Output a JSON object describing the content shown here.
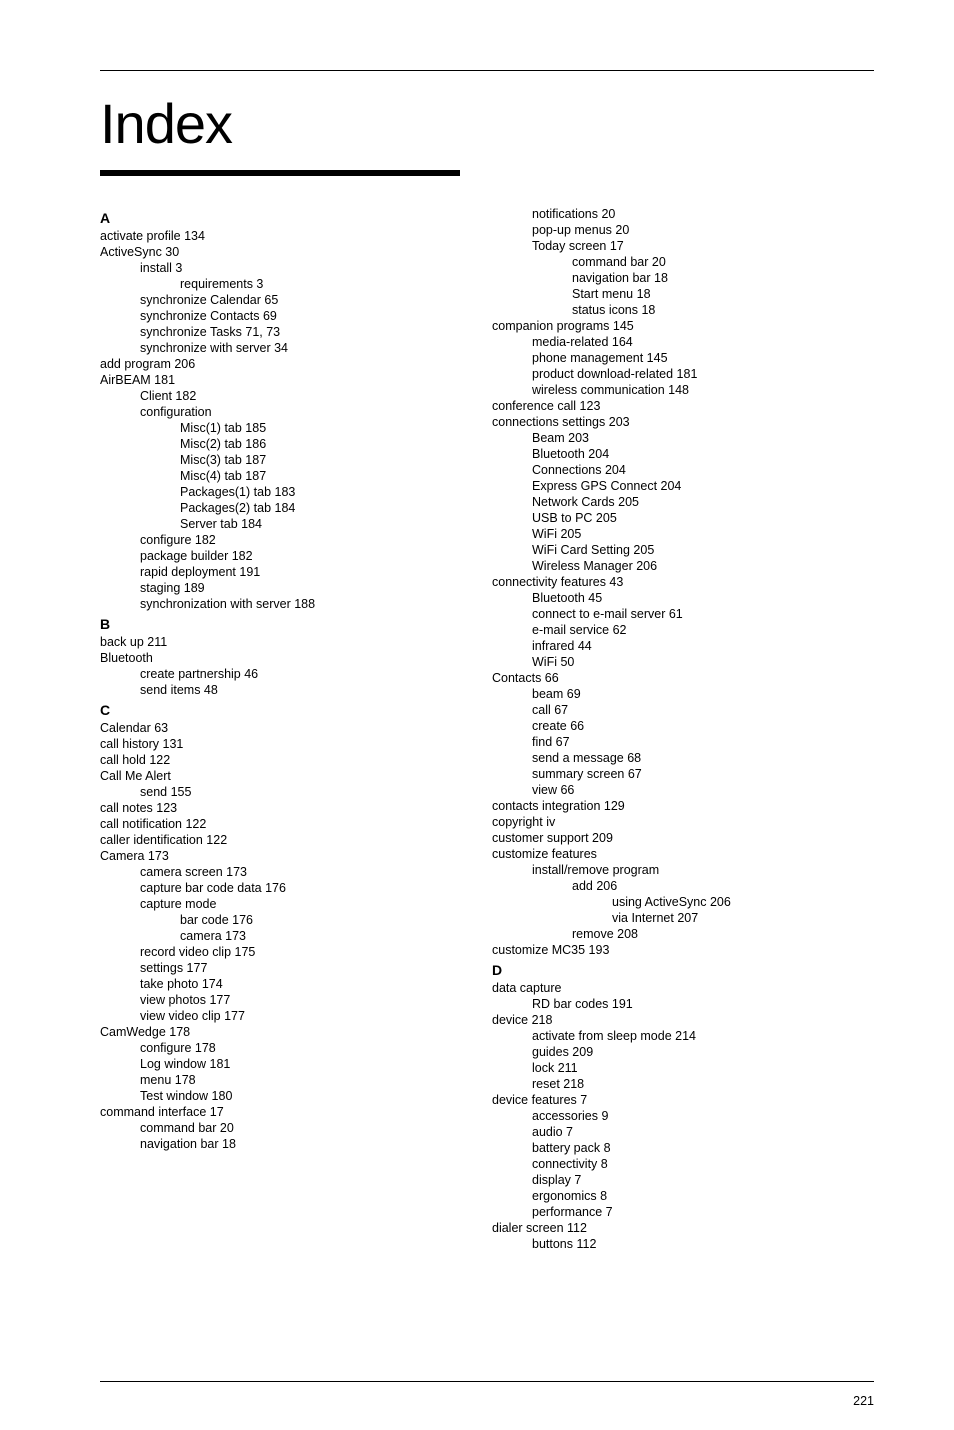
{
  "title": "Index",
  "page_number": "221",
  "left": [
    {
      "t": "letter",
      "text": "A"
    },
    {
      "t": "l0",
      "text": "activate profile  134"
    },
    {
      "t": "l0",
      "text": "ActiveSync  30"
    },
    {
      "t": "l1",
      "text": "install  3"
    },
    {
      "t": "l2",
      "text": "requirements  3"
    },
    {
      "t": "l1",
      "text": "synchronize Calendar  65"
    },
    {
      "t": "l1",
      "text": "synchronize Contacts  69"
    },
    {
      "t": "l1",
      "text": "synchronize Tasks  71, 73"
    },
    {
      "t": "l1",
      "text": "synchronize with server  34"
    },
    {
      "t": "l0",
      "text": "add program  206"
    },
    {
      "t": "l0",
      "text": "AirBEAM  181"
    },
    {
      "t": "l1",
      "text": "Client  182"
    },
    {
      "t": "l1",
      "text": "configuration"
    },
    {
      "t": "l2",
      "text": "Misc(1) tab  185"
    },
    {
      "t": "l2",
      "text": "Misc(2) tab  186"
    },
    {
      "t": "l2",
      "text": "Misc(3) tab  187"
    },
    {
      "t": "l2",
      "text": "Misc(4) tab  187"
    },
    {
      "t": "l2",
      "text": "Packages(1) tab  183"
    },
    {
      "t": "l2",
      "text": "Packages(2) tab  184"
    },
    {
      "t": "l2",
      "text": "Server tab  184"
    },
    {
      "t": "l1",
      "text": "configure  182"
    },
    {
      "t": "l1",
      "text": "package builder  182"
    },
    {
      "t": "l1",
      "text": "rapid deployment  191"
    },
    {
      "t": "l1",
      "text": "staging  189"
    },
    {
      "t": "l1",
      "text": "synchronization with server  188"
    },
    {
      "t": "letter",
      "text": "B"
    },
    {
      "t": "l0",
      "text": "back up  211"
    },
    {
      "t": "l0",
      "text": "Bluetooth"
    },
    {
      "t": "l1",
      "text": "create partnership  46"
    },
    {
      "t": "l1",
      "text": "send items  48"
    },
    {
      "t": "letter",
      "text": "C"
    },
    {
      "t": "l0",
      "text": "Calendar  63"
    },
    {
      "t": "l0",
      "text": "call history  131"
    },
    {
      "t": "l0",
      "text": "call hold  122"
    },
    {
      "t": "l0",
      "text": "Call Me Alert"
    },
    {
      "t": "l1",
      "text": "send  155"
    },
    {
      "t": "l0",
      "text": "call notes  123"
    },
    {
      "t": "l0",
      "text": "call notification  122"
    },
    {
      "t": "l0",
      "text": "caller identification  122"
    },
    {
      "t": "l0",
      "text": "Camera  173"
    },
    {
      "t": "l1",
      "text": "camera screen  173"
    },
    {
      "t": "l1",
      "text": "capture bar code data  176"
    },
    {
      "t": "l1",
      "text": "capture mode"
    },
    {
      "t": "l2",
      "text": "bar code  176"
    },
    {
      "t": "l2",
      "text": "camera  173"
    },
    {
      "t": "l1",
      "text": "record video clip  175"
    },
    {
      "t": "l1",
      "text": "settings  177"
    },
    {
      "t": "l1",
      "text": "take photo  174"
    },
    {
      "t": "l1",
      "text": "view photos  177"
    },
    {
      "t": "l1",
      "text": "view video clip  177"
    },
    {
      "t": "l0",
      "text": "CamWedge  178"
    },
    {
      "t": "l1",
      "text": "configure  178"
    },
    {
      "t": "l1",
      "text": "Log window  181"
    },
    {
      "t": "l1",
      "text": "menu  178"
    },
    {
      "t": "l1",
      "text": "Test window  180"
    },
    {
      "t": "l0",
      "text": "command interface  17"
    },
    {
      "t": "l1",
      "text": "command bar  20"
    },
    {
      "t": "l1",
      "text": "navigation bar  18"
    }
  ],
  "right": [
    {
      "t": "l1",
      "text": "notifications  20"
    },
    {
      "t": "l1",
      "text": "pop-up menus  20"
    },
    {
      "t": "l1",
      "text": "Today screen  17"
    },
    {
      "t": "l2",
      "text": "command bar  20"
    },
    {
      "t": "l2",
      "text": "navigation bar  18"
    },
    {
      "t": "l2",
      "text": "Start menu  18"
    },
    {
      "t": "l2",
      "text": "status icons  18"
    },
    {
      "t": "l0",
      "text": "companion programs  145"
    },
    {
      "t": "l1",
      "text": "media-related  164"
    },
    {
      "t": "l1",
      "text": "phone management  145"
    },
    {
      "t": "l1",
      "text": "product download-related  181"
    },
    {
      "t": "l1",
      "text": "wireless communication  148"
    },
    {
      "t": "l0",
      "text": "conference call  123"
    },
    {
      "t": "l0",
      "text": "connections settings  203"
    },
    {
      "t": "l1",
      "text": "Beam  203"
    },
    {
      "t": "l1",
      "text": "Bluetooth  204"
    },
    {
      "t": "l1",
      "text": "Connections  204"
    },
    {
      "t": "l1",
      "text": "Express GPS Connect  204"
    },
    {
      "t": "l1",
      "text": "Network Cards  205"
    },
    {
      "t": "l1",
      "text": "USB to PC  205"
    },
    {
      "t": "l1",
      "text": "WiFi  205"
    },
    {
      "t": "l1",
      "text": "WiFi Card Setting  205"
    },
    {
      "t": "l1",
      "text": "Wireless Manager  206"
    },
    {
      "t": "l0",
      "text": "connectivity features  43"
    },
    {
      "t": "l1",
      "text": "Bluetooth  45"
    },
    {
      "t": "l1",
      "text": "connect to e-mail server  61"
    },
    {
      "t": "l1",
      "text": "e-mail service  62"
    },
    {
      "t": "l1",
      "text": "infrared  44"
    },
    {
      "t": "l1",
      "text": "WiFi  50"
    },
    {
      "t": "l0",
      "text": "Contacts  66"
    },
    {
      "t": "l1",
      "text": "beam  69"
    },
    {
      "t": "l1",
      "text": "call  67"
    },
    {
      "t": "l1",
      "text": "create  66"
    },
    {
      "t": "l1",
      "text": "find  67"
    },
    {
      "t": "l1",
      "text": "send a message  68"
    },
    {
      "t": "l1",
      "text": "summary screen  67"
    },
    {
      "t": "l1",
      "text": "view  66"
    },
    {
      "t": "l0",
      "text": "contacts integration  129"
    },
    {
      "t": "l0",
      "text": "copyright  iv"
    },
    {
      "t": "l0",
      "text": "customer support  209"
    },
    {
      "t": "l0",
      "text": "customize features"
    },
    {
      "t": "l1",
      "text": "install/remove program"
    },
    {
      "t": "l2",
      "text": "add  206"
    },
    {
      "t": "l3",
      "text": "using ActiveSync  206"
    },
    {
      "t": "l3",
      "text": "via Internet  207"
    },
    {
      "t": "l2",
      "text": "remove  208"
    },
    {
      "t": "l0",
      "text": "customize MC35  193"
    },
    {
      "t": "letter",
      "text": "D"
    },
    {
      "t": "l0",
      "text": "data capture"
    },
    {
      "t": "l1",
      "text": "RD bar codes  191"
    },
    {
      "t": "l0",
      "text": "device  218"
    },
    {
      "t": "l1",
      "text": "activate from sleep mode  214"
    },
    {
      "t": "l1",
      "text": "guides  209"
    },
    {
      "t": "l1",
      "text": "lock  211"
    },
    {
      "t": "l1",
      "text": "reset  218"
    },
    {
      "t": "l0",
      "text": "device features  7"
    },
    {
      "t": "l1",
      "text": "accessories  9"
    },
    {
      "t": "l1",
      "text": "audio  7"
    },
    {
      "t": "l1",
      "text": "battery pack  8"
    },
    {
      "t": "l1",
      "text": "connectivity  8"
    },
    {
      "t": "l1",
      "text": "display  7"
    },
    {
      "t": "l1",
      "text": "ergonomics  8"
    },
    {
      "t": "l1",
      "text": "performance  7"
    },
    {
      "t": "l0",
      "text": "dialer screen  112"
    },
    {
      "t": "l1",
      "text": "buttons  112"
    }
  ]
}
